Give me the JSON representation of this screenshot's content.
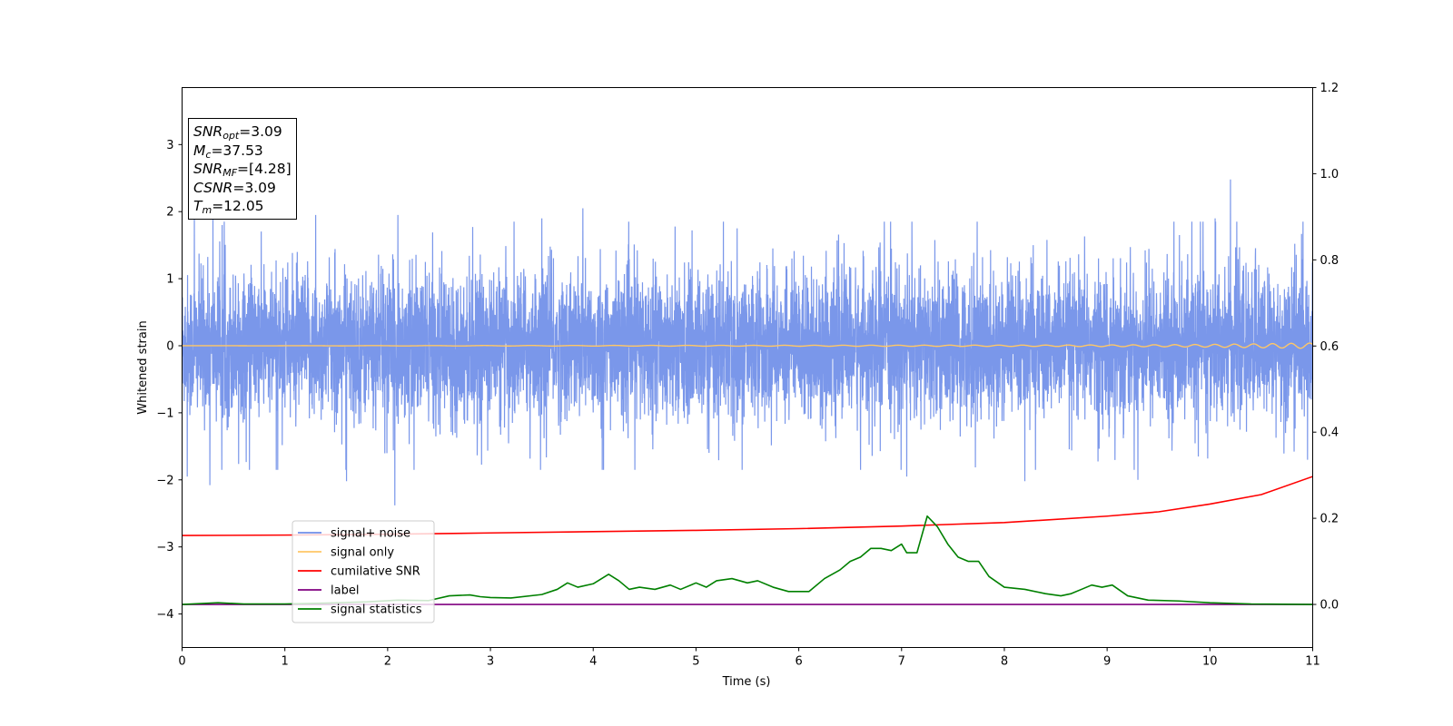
{
  "chart_data": {
    "type": "line",
    "xlabel": "Time (s)",
    "ylabel": "Whitened strain",
    "xlim": [
      0,
      11
    ],
    "ylim": [
      -4.5,
      3.85
    ],
    "ylim_right": [
      -0.1,
      1.2
    ],
    "x_ticks": [
      0,
      1,
      2,
      3,
      4,
      5,
      6,
      7,
      8,
      9,
      10,
      11
    ],
    "y_ticks": [
      -4,
      -3,
      -2,
      -1,
      0,
      1,
      2,
      3
    ],
    "y_ticks_right": [
      0.0,
      0.2,
      0.4,
      0.6,
      0.8,
      1.0,
      1.2
    ],
    "grid": false,
    "legend_location": "lower-left",
    "series": [
      {
        "name": "signal+ noise",
        "axis": "left",
        "color": "#6f8ee8",
        "style": "dense-noise",
        "stats": {
          "typical_amplitude": 1.3,
          "max": 2.48,
          "min": -2.38
        },
        "peaks": [
          [
            0.12,
            2.05
          ],
          [
            0.3,
            1.95
          ],
          [
            1.3,
            1.95
          ],
          [
            2.1,
            1.95
          ],
          [
            3.5,
            1.9
          ],
          [
            3.9,
            2.05
          ],
          [
            4.1,
            2.08
          ],
          [
            5.4,
            1.75
          ],
          [
            7.1,
            1.85
          ],
          [
            10.05,
            1.9
          ],
          [
            10.2,
            2.48
          ]
        ],
        "troughs": [
          [
            0.05,
            -1.95
          ],
          [
            0.27,
            -2.08
          ],
          [
            1.6,
            -2.02
          ],
          [
            2.07,
            -2.38
          ],
          [
            4.1,
            -1.85
          ],
          [
            7.05,
            -1.95
          ],
          [
            8.2,
            -2.02
          ],
          [
            9.3,
            -2.0
          ],
          [
            10.95,
            -1.7
          ]
        ]
      },
      {
        "name": "signal only",
        "axis": "left",
        "color": "#ffc766",
        "x": [
          0,
          8.5,
          9.5,
          10.0,
          10.5,
          11.0
        ],
        "amplitude": [
          0.0,
          0.01,
          0.015,
          0.02,
          0.03,
          0.04
        ]
      },
      {
        "name": "cumilative SNR",
        "axis": "right",
        "color": "#ff0000",
        "x": [
          0,
          1,
          2,
          3,
          4,
          5,
          6,
          7,
          8,
          9,
          9.5,
          10,
          10.5,
          11
        ],
        "values": [
          0.16,
          0.161,
          0.163,
          0.166,
          0.169,
          0.172,
          0.176,
          0.182,
          0.19,
          0.205,
          0.215,
          0.233,
          0.255,
          0.297
        ]
      },
      {
        "name": "label",
        "axis": "right",
        "color": "#800080",
        "x": [
          0,
          11
        ],
        "values": [
          0.0,
          0.0
        ]
      },
      {
        "name": "signal statistics",
        "axis": "right",
        "color": "#008000",
        "x": [
          0,
          0.35,
          0.6,
          1.0,
          1.4,
          1.8,
          2.1,
          2.4,
          2.6,
          2.8,
          2.9,
          3.0,
          3.2,
          3.5,
          3.65,
          3.75,
          3.85,
          4.0,
          4.15,
          4.25,
          4.35,
          4.45,
          4.6,
          4.75,
          4.85,
          5.0,
          5.1,
          5.2,
          5.35,
          5.5,
          5.6,
          5.75,
          5.9,
          6.1,
          6.25,
          6.4,
          6.5,
          6.6,
          6.7,
          6.8,
          6.9,
          7.0,
          7.05,
          7.15,
          7.25,
          7.35,
          7.45,
          7.55,
          7.65,
          7.75,
          7.85,
          8.0,
          8.2,
          8.4,
          8.55,
          8.65,
          8.75,
          8.85,
          8.95,
          9.05,
          9.2,
          9.4,
          9.7,
          10.0,
          10.4,
          11.0
        ],
        "values": [
          0.0,
          0.004,
          0.001,
          0.001,
          0.003,
          0.006,
          0.01,
          0.009,
          0.02,
          0.022,
          0.018,
          0.016,
          0.015,
          0.023,
          0.035,
          0.05,
          0.04,
          0.048,
          0.07,
          0.055,
          0.035,
          0.04,
          0.035,
          0.045,
          0.035,
          0.05,
          0.04,
          0.055,
          0.06,
          0.05,
          0.055,
          0.04,
          0.03,
          0.03,
          0.06,
          0.08,
          0.1,
          0.11,
          0.13,
          0.13,
          0.125,
          0.14,
          0.12,
          0.12,
          0.205,
          0.18,
          0.14,
          0.11,
          0.1,
          0.1,
          0.065,
          0.04,
          0.035,
          0.025,
          0.02,
          0.025,
          0.035,
          0.045,
          0.04,
          0.045,
          0.02,
          0.01,
          0.008,
          0.004,
          0.001,
          0.0
        ]
      }
    ],
    "annotation": {
      "rows": [
        {
          "symbol": "SNR",
          "sub": "opt",
          "text": "=3.09"
        },
        {
          "symbol": "M",
          "sub": "c",
          "text": "=37.53"
        },
        {
          "symbol": "SNR",
          "sub": "MF",
          "text": "=[4.28]"
        },
        {
          "symbol": "CSNR",
          "sub": "",
          "text": "=3.09"
        },
        {
          "symbol": "T",
          "sub": "m",
          "text": "=12.05"
        }
      ]
    }
  }
}
